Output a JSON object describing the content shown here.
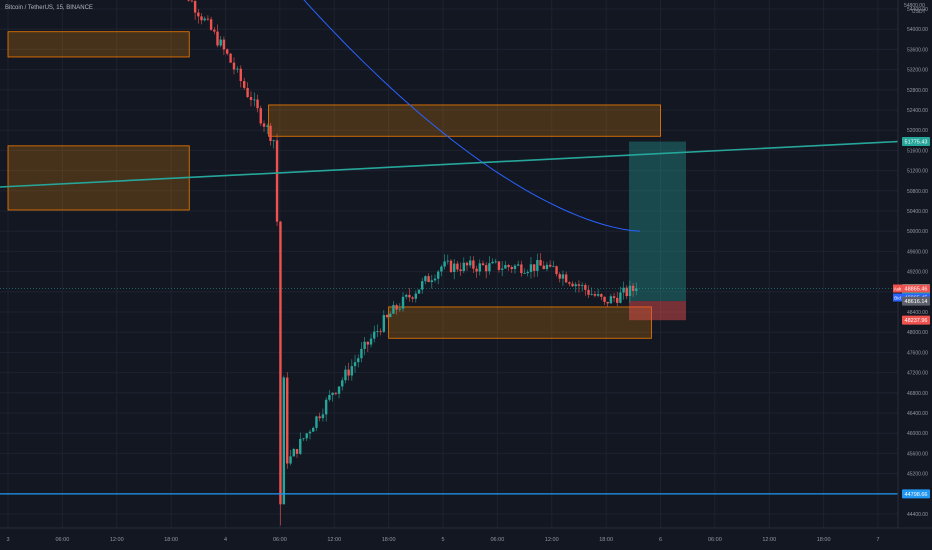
{
  "header": {
    "symbol_title": "Bitcoin / TetherUS, 15, BINANCE"
  },
  "price_axis": {
    "unit": "USDT",
    "top_partial_label": "54800.00"
  },
  "price_tags": {
    "current": "48866.56",
    "countdown": "14:55",
    "ask_label": "Ask",
    "ask_value": "48865.46",
    "bid_label": "Bid",
    "bid_value": "48865.45",
    "level_low": "48616.14",
    "level_red": "48237.96",
    "green_line": "51775.43",
    "blue_line": "44798.66"
  },
  "colors": {
    "background": "#131722",
    "grid": "#1e2230",
    "up_candle": "#26a69a",
    "down_candle": "#ef5350",
    "zone_fill": "rgba(255,152,0,0.22)",
    "zone_border": "#f57c00",
    "trend_line": "#26a69a",
    "ma_line": "#2962ff",
    "support_line": "#2196f3",
    "target_fill": "rgba(38,166,154,0.35)",
    "stop_fill": "rgba(239,83,80,0.45)"
  },
  "chart_data": {
    "type": "candlestick",
    "symbol": "Bitcoin / TetherUS",
    "interval": "15",
    "exchange": "BINANCE",
    "y_ticks": [
      44400,
      44800,
      45200,
      45600,
      46000,
      46400,
      46800,
      47200,
      47600,
      48000,
      48400,
      48800,
      49200,
      49600,
      50000,
      50400,
      50800,
      51200,
      51600,
      52000,
      52400,
      52800,
      53200,
      53600,
      54000,
      54400
    ],
    "x_ticks": [
      "3",
      "06:00",
      "12:00",
      "18:00",
      "4",
      "06:00",
      "12:00",
      "18:00",
      "5",
      "06:00",
      "12:00",
      "18:00",
      "6",
      "06:00",
      "12:00",
      "18:00",
      "7"
    ],
    "ylim": [
      44100,
      55000
    ],
    "candles_by_segment": [
      {
        "from": "3 18:00",
        "to": "4 00:00",
        "open": 55200,
        "close": 53600,
        "note": "drop from high"
      },
      {
        "from": "4 00:00",
        "to": "4 03:00",
        "open": 53600,
        "close": 52600
      },
      {
        "from": "4 03:00",
        "to": "4 05:30",
        "open": 52600,
        "close": 51800
      },
      {
        "from": "4 05:30",
        "to": "4 07:00",
        "open": 51800,
        "close": 45400,
        "low": 44300
      },
      {
        "from": "4 07:00",
        "to": "4 12:00",
        "open": 45400,
        "close": 46800
      },
      {
        "from": "4 12:00",
        "to": "4 18:00",
        "open": 46800,
        "close": 48300
      },
      {
        "from": "4 18:00",
        "to": "5 00:00",
        "open": 48300,
        "close": 49300
      },
      {
        "from": "5 00:00",
        "to": "5 12:00",
        "open": 49300,
        "close": 49300
      },
      {
        "from": "5 12:00",
        "to": "5 18:00",
        "open": 49300,
        "close": 48600
      },
      {
        "from": "5 18:00",
        "to": "5 21:30",
        "open": 48600,
        "close": 48866.56
      }
    ],
    "zones": [
      {
        "from_price": 53450,
        "to_price": 53950,
        "x_start": "3 00:00",
        "x_end": "3 20:00"
      },
      {
        "from_price": 51880,
        "to_price": 52500,
        "x_start": "4 04:45",
        "x_end": "6 00:00"
      },
      {
        "from_price": 50420,
        "to_price": 51690,
        "x_start": "3 00:00",
        "x_end": "3 20:00"
      },
      {
        "from_price": 47880,
        "to_price": 48500,
        "x_start": "4 18:00",
        "x_end": "5 23:00"
      }
    ],
    "levels": {
      "trend_line_right": 51775.43,
      "support_line": 44798.66,
      "position_entry": 48616.14,
      "position_target": 51775.43,
      "position_stop": 48237.96
    },
    "moving_average": {
      "color": "blue",
      "start": 55000,
      "end": 50000
    }
  }
}
